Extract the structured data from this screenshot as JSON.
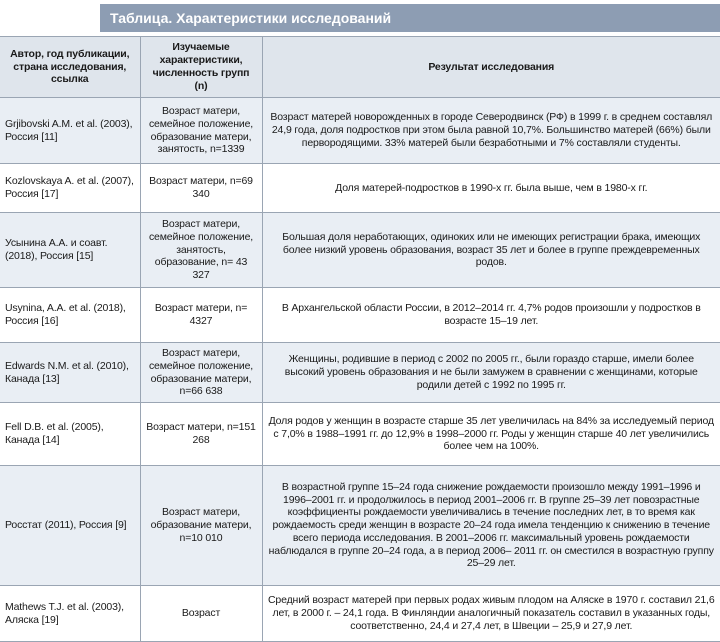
{
  "title": "Таблица. Характеристики исследований",
  "table": {
    "header": [
      "Автор, год публикации, страна исследования, ссылка",
      "Изучаемые характеристики, численность групп (n)",
      "Результат исследования"
    ],
    "rows": [
      [
        "Grjibovski A.M. et al. (2003), Россия [11]",
        "Возраст матери, семейное положение, образование матери, занятость, n=1339",
        "Возраст матерей новорожденных в городе Северодвинск (РФ) в 1999 г. в среднем составлял 24,9 года, доля подростков при этом была равной 10,7%. Большинство матерей (66%) были первородящими. 33% матерей были безработными и 7% составляли студенты."
      ],
      [
        "Kozlovskaya A. et al. (2007), Россия [17]",
        "Возраст матери, n=69 340",
        "Доля матерей-подростков в 1990-х гг. была выше, чем в 1980-х гг."
      ],
      [
        "Усынина А.А. и соавт. (2018), Россия [15]",
        "Возраст матери, семейное положение, занятость, образование, n= 43 327",
        "Большая доля неработающих, одиноких или не имеющих регистрации брака, имеющих более низкий уровень образования, возраст 35 лет и более в группе преждевременных родов."
      ],
      [
        "Usynina, A.A. et al. (2018), Россия [16]",
        "Возраст матери, n= 4327",
        "В Архангельской области России, в 2012–2014 гг. 4,7% родов произошли у подростков в возрасте 15–19 лет."
      ],
      [
        "Edwards N.M. et al. (2010), Канада [13]",
        "Возраст матери, семейное положение, образование матери, n=66 638",
        "Женщины, родившие в период с 2002 по 2005 гг., были гораздо старше, имели более высокий уровень образования и не были замужем в сравнении с женщинами, которые родили детей с 1992 по 1995 гг."
      ],
      [
        "Fell D.B. et al. (2005), Канада [14]",
        "Возраст матери, n=151 268",
        "Доля родов у женщин в возрасте старше 35 лет увеличилась на 84% за исследуемый период с 7,0% в 1988–1991 гг. до 12,9% в 1998–2000 гг. Роды у женщин старше 40 лет увеличились более чем на 100%."
      ],
      [
        "Росстат (2011), Россия [9]",
        "Возраст матери, образование матери, n=10 010",
        "В возрастной группе 15–24 года снижение рождаемости произошло между 1991–1996 и 1996–2001 гг. и продолжилось в период 2001–2006 гг. В группе 25–39 лет повозрастные коэффициенты рождаемости увеличивались в течение последних лет, в то время как рождаемость среди женщин в возрасте 20–24 года имела тенденцию к снижению в течение всего периода исследования. В 2001–2006 гг. максимальный уровень рождаемости наблюдался в группе 20–24 года, а в период 2006– 2011 гг. он сместился в возрастную группу 25–29 лет."
      ],
      [
        "Mathews T.J. et al. (2003), Аляска [19]",
        "Возраст",
        "Средний возраст матерей при первых родах живым плодом на Аляске в 1970 г. составил 21,6 лет, в 2000 г. – 24,1 года. В Финляндии аналогичный показатель составил в указанных годы, соответственно, 24,4 и 27,4 лет, в Швеции – 25,9 и 27,9 лет."
      ]
    ]
  }
}
